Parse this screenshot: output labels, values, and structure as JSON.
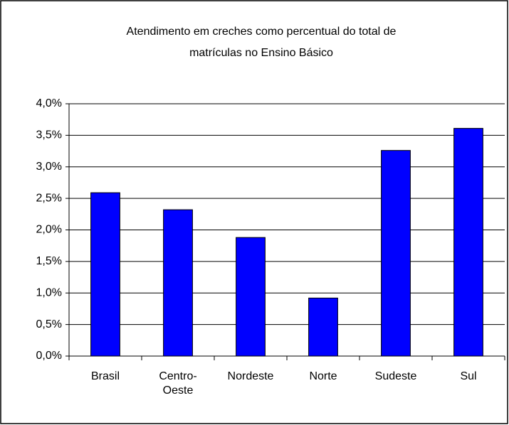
{
  "chart_data": {
    "type": "bar",
    "title": [
      "Atendimento em creches como percentual do total de",
      "matrículas no Ensino Básico"
    ],
    "categories": [
      "Brasil",
      "Centro-Oeste",
      "Nordeste",
      "Norte",
      "Sudeste",
      "Sul"
    ],
    "values": [
      2.59,
      2.32,
      1.88,
      0.92,
      3.26,
      3.61
    ],
    "color": "#0000ff",
    "ylim": [
      0,
      4
    ],
    "yticks": [
      {
        "value": 0,
        "label": "0,0%"
      },
      {
        "value": 0.5,
        "label": "0,5%"
      },
      {
        "value": 1,
        "label": "1,0%"
      },
      {
        "value": 1.5,
        "label": "1,5%"
      },
      {
        "value": 2,
        "label": "2,0%"
      },
      {
        "value": 2.5,
        "label": "2,5%"
      },
      {
        "value": 3,
        "label": "3,0%"
      },
      {
        "value": 3.5,
        "label": "3,5%"
      },
      {
        "value": 4,
        "label": "4,0%"
      }
    ],
    "grid": true
  }
}
